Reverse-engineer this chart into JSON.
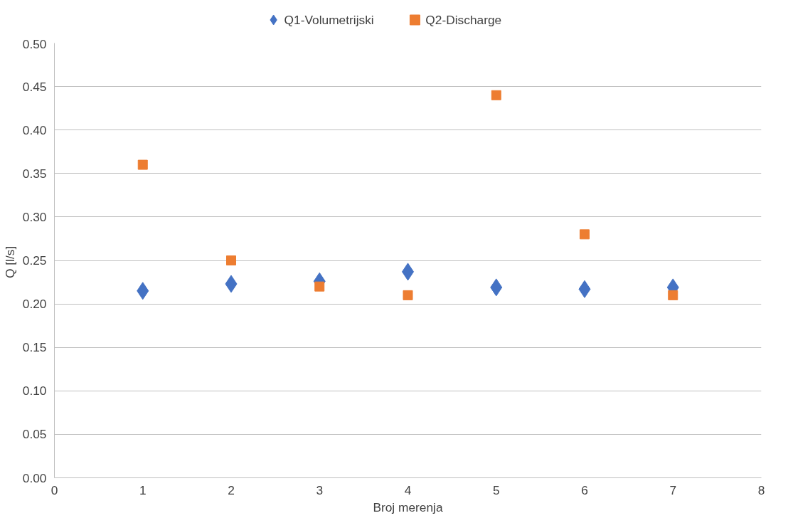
{
  "chart_data": {
    "type": "scatter",
    "xlabel": "Broj merenja",
    "ylabel": "Q  [l/s]",
    "x": [
      1,
      2,
      3,
      4,
      5,
      6,
      7
    ],
    "series": [
      {
        "name": "Q1-Volumetrijski",
        "color": "#4472c4",
        "marker": "diamond",
        "values": [
          0.215,
          0.223,
          0.226,
          0.237,
          0.219,
          0.217,
          0.219
        ]
      },
      {
        "name": "Q2-Discharge",
        "color": "#ed7d31",
        "marker": "square",
        "values": [
          0.36,
          0.25,
          0.22,
          0.21,
          0.44,
          0.28,
          0.21
        ]
      }
    ],
    "xlim": [
      0,
      8
    ],
    "xticks": [
      0,
      1,
      2,
      3,
      4,
      5,
      6,
      7,
      8
    ],
    "ylim": [
      0,
      0.5
    ],
    "yticks": [
      {
        "value": 0,
        "label": "0.00"
      },
      {
        "value": 0.05,
        "label": "0.05"
      },
      {
        "value": 0.1,
        "label": "0.10"
      },
      {
        "value": 0.15,
        "label": "0.15"
      },
      {
        "value": 0.2,
        "label": "0.20"
      },
      {
        "value": 0.25,
        "label": "0.25"
      },
      {
        "value": 0.3,
        "label": "0.30"
      },
      {
        "value": 0.35,
        "label": "0.35"
      },
      {
        "value": 0.4,
        "label": "0.40"
      },
      {
        "value": 0.45,
        "label": "0.45"
      },
      {
        "value": 0.5,
        "label": "0.50"
      }
    ],
    "grid": "y",
    "legend": "top"
  }
}
